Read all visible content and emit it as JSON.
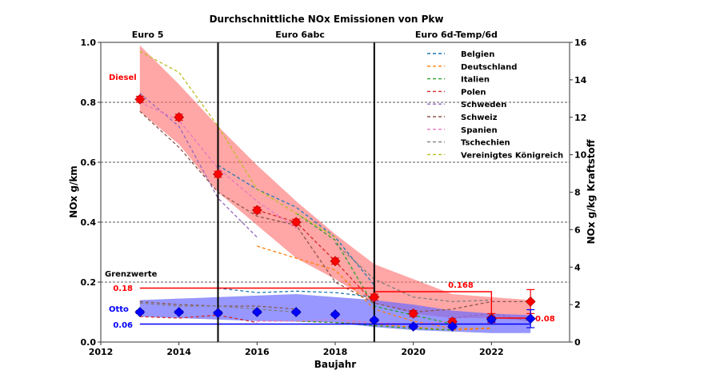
{
  "chart_data": {
    "type": "line",
    "title": "Durchschnittliche NOx Emissionen von Pkw",
    "xlabel": "Baujahr",
    "ylabel": "NOx g/km",
    "ylabel_right": "NOx g/kg Kraftstoff",
    "xlim": [
      2012,
      2024
    ],
    "ylim": [
      0,
      1.0
    ],
    "ylim_right": [
      0,
      16
    ],
    "x_ticks": [
      2012,
      2014,
      2016,
      2018,
      2020,
      2022
    ],
    "y_ticks": [
      "0.0",
      "0.2",
      "0.4",
      "0.6",
      "0.8",
      "1.0"
    ],
    "y_ticks_right": [
      "0",
      "2",
      "4",
      "6",
      "8",
      "10",
      "12",
      "14",
      "16"
    ],
    "grid": "horizontal dashed",
    "legend_position": "top-right",
    "periods": [
      {
        "label": "Euro 5",
        "from": 2012,
        "to": 2015
      },
      {
        "label": "Euro 6abc",
        "from": 2015,
        "to": 2019
      },
      {
        "label": "Euro 6d-Temp/6d",
        "from": 2019,
        "to": 2024
      }
    ],
    "period_boundaries": [
      2015,
      2019
    ],
    "annotations": {
      "diesel_label": "Diesel",
      "otto_label": "Otto",
      "limits_label": "Grenzwerte",
      "diesel_limit_euro5_6": "0.18",
      "diesel_limit_6d": "0.168",
      "diesel_limit_final": "0.08",
      "otto_limit": "0.06"
    },
    "limits": {
      "diesel": [
        {
          "from": 2013,
          "to": 2019,
          "value": 0.18
        },
        {
          "from": 2019,
          "to": 2022,
          "value": 0.168
        },
        {
          "from": 2022,
          "to": 2023,
          "value": 0.08
        }
      ],
      "otto": [
        {
          "from": 2013,
          "to": 2023,
          "value": 0.06
        }
      ]
    },
    "diesel_band": {
      "x": [
        2013,
        2014,
        2015,
        2016,
        2017,
        2018,
        2019,
        2020,
        2021,
        2022,
        2023
      ],
      "upper": [
        0.99,
        0.86,
        0.72,
        0.59,
        0.47,
        0.36,
        0.26,
        0.21,
        0.16,
        0.15,
        0.14
      ],
      "lower": [
        0.77,
        0.66,
        0.5,
        0.39,
        0.28,
        0.21,
        0.13,
        0.095,
        0.08,
        0.08,
        0.07
      ],
      "color": "#ff6b6b"
    },
    "otto_band": {
      "x": [
        2013,
        2014,
        2015,
        2016,
        2017,
        2018,
        2019,
        2020,
        2021,
        2022,
        2023
      ],
      "upper": [
        0.14,
        0.145,
        0.15,
        0.155,
        0.16,
        0.15,
        0.14,
        0.125,
        0.105,
        0.095,
        0.09
      ],
      "lower": [
        0.085,
        0.08,
        0.075,
        0.07,
        0.068,
        0.065,
        0.05,
        0.04,
        0.035,
        0.03,
        0.03
      ],
      "color": "#6b6bff"
    },
    "diesel_mean": {
      "x": [
        2013,
        2014,
        2015,
        2016,
        2017,
        2018,
        2019,
        2020,
        2021,
        2022,
        2023
      ],
      "values": [
        0.81,
        0.75,
        0.56,
        0.44,
        0.4,
        0.27,
        0.15,
        0.095,
        0.068,
        0.08,
        0.135
      ],
      "err": [
        0.01,
        0.01,
        0.01,
        0.01,
        0.01,
        0.01,
        0.01,
        0.01,
        0.01,
        0.015,
        0.04
      ],
      "color": "#ff0000"
    },
    "otto_mean": {
      "x": [
        2013,
        2014,
        2015,
        2016,
        2017,
        2018,
        2019,
        2020,
        2021,
        2022,
        2023
      ],
      "values": [
        0.1,
        0.1,
        0.097,
        0.1,
        0.1,
        0.092,
        0.073,
        0.052,
        0.052,
        0.075,
        0.078
      ],
      "err": [
        0.005,
        0.005,
        0.005,
        0.005,
        0.005,
        0.005,
        0.005,
        0.006,
        0.006,
        0.008,
        0.03
      ],
      "color": "#0000ff"
    },
    "series": [
      {
        "name": "Belgien",
        "color": "#1f77b4",
        "diesel": {
          "x": [
            2015,
            2016,
            2017,
            2018,
            2019
          ],
          "values": [
            0.59,
            0.51,
            0.45,
            0.35,
            0.19
          ]
        },
        "otto": {
          "x": [
            2015,
            2016,
            2017,
            2018,
            2019
          ],
          "values": [
            0.18,
            0.165,
            0.17,
            0.165,
            0.15
          ]
        }
      },
      {
        "name": "Deutschland",
        "color": "#ff7f0e",
        "diesel": {
          "x": [
            2016,
            2017,
            2018,
            2019,
            2020,
            2021,
            2022
          ],
          "values": [
            0.32,
            0.28,
            0.24,
            0.11,
            0.07,
            0.045,
            0.047
          ]
        },
        "otto": {
          "x": [
            2016,
            2017,
            2018,
            2019,
            2020,
            2021,
            2022
          ],
          "values": [
            0.07,
            0.07,
            0.065,
            0.06,
            0.05,
            0.04,
            0.045
          ]
        }
      },
      {
        "name": "Italien",
        "color": "#2ca02c",
        "diesel": {
          "x": [
            2017,
            2018,
            2019,
            2020,
            2021
          ],
          "values": [
            0.43,
            0.34,
            0.12,
            0.09,
            0.06
          ]
        },
        "otto": {
          "x": [
            2017,
            2018,
            2019,
            2020,
            2021
          ],
          "values": [
            0.07,
            0.065,
            0.055,
            0.045,
            0.04
          ]
        }
      },
      {
        "name": "Polen",
        "color": "#d62728",
        "diesel": {
          "x": [
            2016,
            2017,
            2018,
            2019
          ],
          "values": [
            0.44,
            0.4,
            0.27,
            0.13
          ]
        },
        "otto": {
          "x": [
            2013,
            2014,
            2015,
            2016
          ],
          "values": [
            0.085,
            0.08,
            0.09,
            0.065
          ]
        }
      },
      {
        "name": "Schweden",
        "color": "#9467bd",
        "diesel": {
          "x": [
            2013,
            2014,
            2015,
            2016
          ],
          "values": [
            0.83,
            0.72,
            0.48,
            0.35
          ]
        },
        "otto": {
          "x": [
            2021,
            2022,
            2023
          ],
          "values": [
            0.08,
            0.095,
            0.07
          ]
        }
      },
      {
        "name": "Schweiz",
        "color": "#8c564b",
        "diesel": {
          "x": [
            2013,
            2014,
            2015,
            2016,
            2017,
            2018,
            2019,
            2020,
            2021,
            2022,
            2023
          ],
          "values": [
            0.77,
            0.65,
            0.5,
            0.42,
            0.39,
            0.2,
            0.13,
            0.1,
            0.11,
            0.135,
            0.135
          ]
        },
        "otto": {
          "x": [
            2013,
            2014,
            2015,
            2016,
            2017
          ],
          "values": [
            0.135,
            0.125,
            0.12,
            0.12,
            0.11
          ]
        }
      },
      {
        "name": "Spanien",
        "color": "#e377c2",
        "diesel": {
          "x": [
            2013,
            2014,
            2015,
            2016,
            2017
          ],
          "values": [
            0.8,
            0.74,
            0.58,
            0.47,
            0.38
          ]
        },
        "otto": {
          "x": [
            2016,
            2017,
            2018,
            2019,
            2020,
            2021
          ],
          "values": [
            0.07,
            0.07,
            0.075,
            0.065,
            0.06,
            0.07
          ]
        }
      },
      {
        "name": "Tschechien",
        "color": "#7f7f7f",
        "diesel": {
          "x": [
            2018,
            2019,
            2020,
            2021,
            2022
          ],
          "values": [
            0.33,
            0.21,
            0.15,
            0.135,
            0.14
          ]
        },
        "otto": {
          "x": [
            2013,
            2014,
            2015,
            2016,
            2017
          ],
          "values": [
            0.13,
            0.12,
            0.12,
            0.11,
            0.1
          ]
        }
      },
      {
        "name": "Vereinigtes Königreich",
        "color": "#bcbd22",
        "diesel": {
          "x": [
            2013,
            2014,
            2015,
            2016,
            2017,
            2018
          ],
          "values": [
            0.97,
            0.9,
            0.72,
            0.51,
            0.43,
            0.35
          ]
        },
        "otto": {
          "x": [],
          "values": []
        }
      }
    ]
  }
}
